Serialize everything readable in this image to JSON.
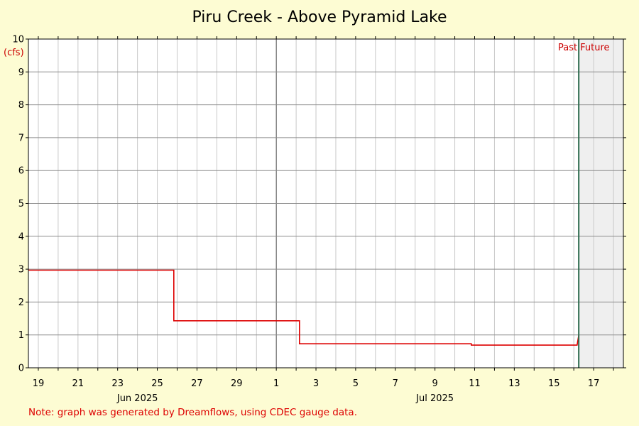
{
  "chart_data": {
    "type": "line",
    "title": "Piru Creek - Above Pyramid Lake",
    "ylabel": "(cfs)",
    "ylim": [
      0,
      10
    ],
    "yticks": [
      "0",
      "1",
      "2",
      "3",
      "4",
      "5",
      "6",
      "7",
      "8",
      "9",
      "10"
    ],
    "xlim": [
      "2025-06-18 12:00",
      "2025-07-18 12:00"
    ],
    "x_day_labels": [
      {
        "date": "2025-06-19",
        "label": "19"
      },
      {
        "date": "2025-06-21",
        "label": "21"
      },
      {
        "date": "2025-06-23",
        "label": "23"
      },
      {
        "date": "2025-06-25",
        "label": "25"
      },
      {
        "date": "2025-06-27",
        "label": "27"
      },
      {
        "date": "2025-06-29",
        "label": "29"
      },
      {
        "date": "2025-07-01",
        "label": "1"
      },
      {
        "date": "2025-07-03",
        "label": "3"
      },
      {
        "date": "2025-07-05",
        "label": "5"
      },
      {
        "date": "2025-07-07",
        "label": "7"
      },
      {
        "date": "2025-07-09",
        "label": "9"
      },
      {
        "date": "2025-07-11",
        "label": "11"
      },
      {
        "date": "2025-07-13",
        "label": "13"
      },
      {
        "date": "2025-07-15",
        "label": "15"
      },
      {
        "date": "2025-07-17",
        "label": "17"
      }
    ],
    "x_month_labels": [
      {
        "date": "2025-06-24",
        "label": "Jun 2025"
      },
      {
        "date": "2025-07-09",
        "label": "Jul 2025"
      }
    ],
    "month_boundary": "2025-07-01",
    "series": [
      {
        "color": "#dd0000",
        "step": true,
        "points": [
          {
            "x": "2025-06-18 12:00",
            "y": 2.97
          },
          {
            "x": "2025-06-25 20:00",
            "y": 2.97
          },
          {
            "x": "2025-06-25 20:00",
            "y": 1.43
          },
          {
            "x": "2025-07-02 04:00",
            "y": 1.43
          },
          {
            "x": "2025-07-02 04:00",
            "y": 0.73
          },
          {
            "x": "2025-07-10 20:00",
            "y": 0.73
          },
          {
            "x": "2025-07-10 20:00",
            "y": 0.69
          },
          {
            "x": "2025-07-16 04:00",
            "y": 0.69
          },
          {
            "x": "2025-07-16 06:00",
            "y": 1.0
          }
        ]
      }
    ],
    "now_marker": {
      "x": "2025-07-16 06:00",
      "color": "#2e6b4f"
    },
    "region_labels": {
      "past": "Past",
      "future": "Future"
    },
    "future_shade_color": "#efefef",
    "note": "Note: graph was generated by Dreamflows, using CDEC gauge data."
  }
}
